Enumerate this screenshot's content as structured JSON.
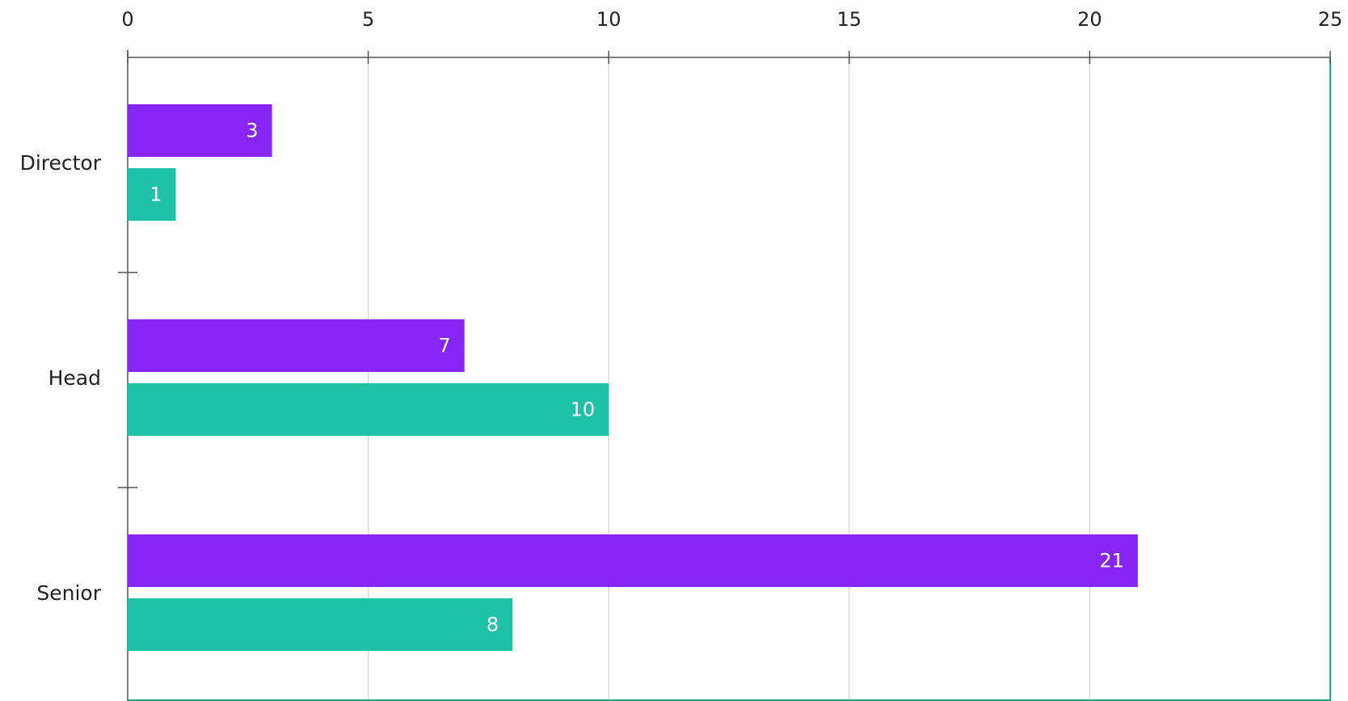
{
  "chart_data": {
    "type": "bar",
    "orientation": "horizontal",
    "x_axis_position": "top",
    "grid": true,
    "xlim": [
      0,
      25
    ],
    "x_ticks": [
      0,
      5,
      10,
      15,
      20,
      25
    ],
    "categories": [
      "Director",
      "Head",
      "Senior"
    ],
    "series": [
      {
        "color": "#8526f5",
        "values": [
          3,
          7,
          21
        ]
      },
      {
        "color": "#1fc1a7",
        "values": [
          1,
          10,
          8
        ]
      }
    ],
    "data_labels": true
  }
}
